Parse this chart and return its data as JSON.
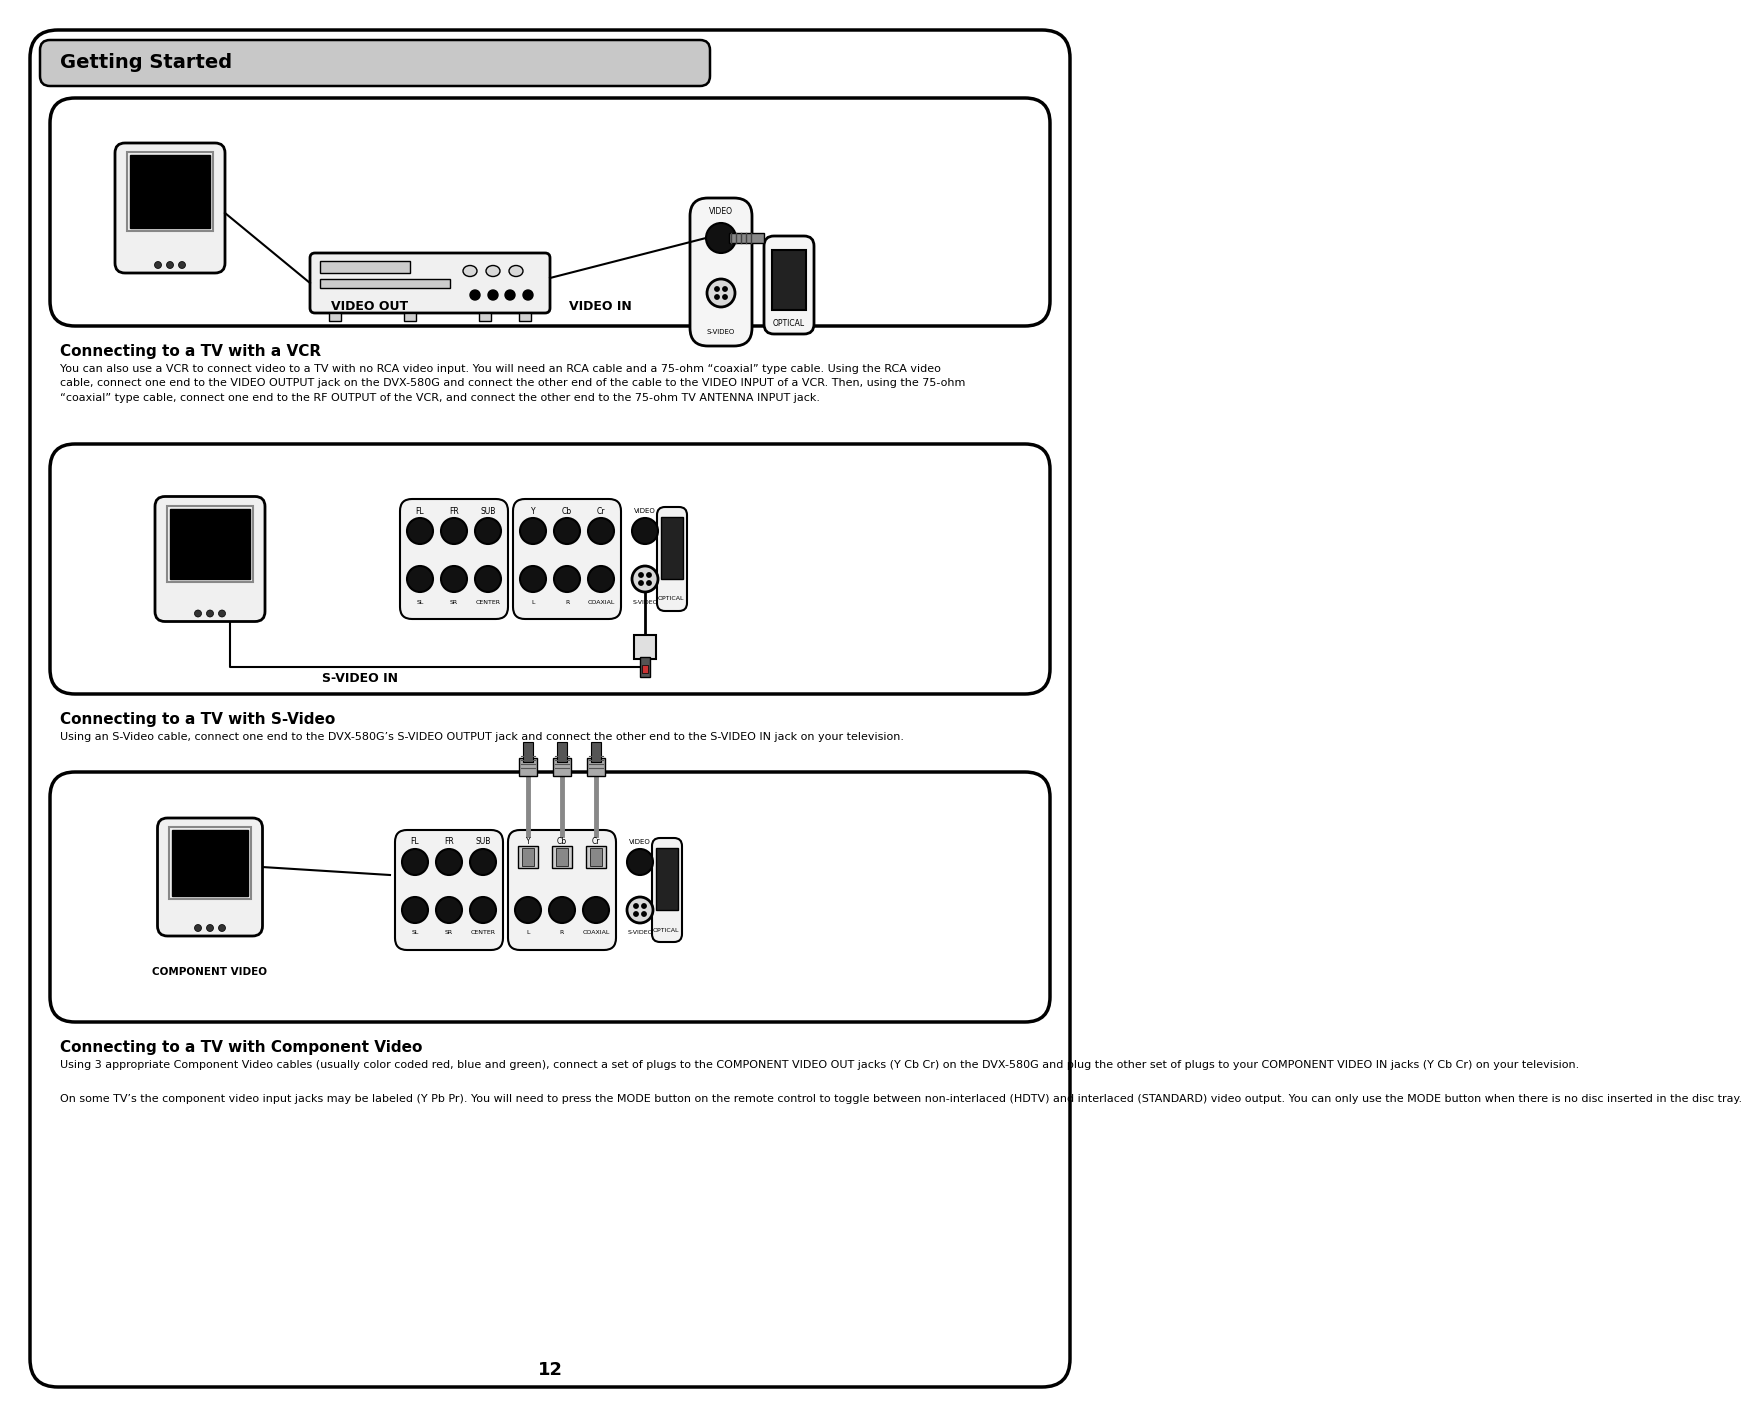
{
  "page_bg": "#ffffff",
  "header_bg": "#c8c8c8",
  "header_text": "Getting Started",
  "header_font_size": 15,
  "section1_title": "Connecting to a TV with a VCR",
  "section1_body": "You can also use a VCR to connect video to a TV with no RCA video input. You will need an RCA cable and a 75-ohm “coaxial” type cable. Using the RCA video\ncable, connect one end to the VIDEO OUTPUT jack on the DVX-580G and connect the other end of the cable to the VIDEO INPUT of a VCR. Then, using the 75-ohm\n“coaxial” type cable, connect one end to the RF OUTPUT of the VCR, and connect the other end to the 75-ohm TV ANTENNA INPUT jack.",
  "section2_title": "Connecting to a TV with S-Video",
  "section2_body": "Using an S-Video cable, connect one end to the DVX-580G’s S-VIDEO OUTPUT jack and connect the other end to the S-VIDEO IN jack on your television.",
  "section3_title": "Connecting to a TV with Component Video",
  "section3_body1": "Using 3 appropriate Component Video cables (usually color coded red, blue and green), connect a set of plugs to the COMPONENT VIDEO OUT jacks (Y Cb Cr) on the DVX-580G and plug the other set of plugs to your COMPONENT VIDEO IN jacks (Y Cb Cr) on your television.",
  "section3_body2": "On some TV’s the component video input jacks may be labeled (Y Pb Pr). You will need to press the MODE button on the remote control to toggle between non-interlaced (HDTV) and interlaced (STANDARD) video output. You can only use the MODE button when there is no disc inserted in the disc tray.",
  "page_number": "12",
  "label_video_out": "VIDEO OUT",
  "label_video_in": "VIDEO IN",
  "label_svideo_in": "S-VIDEO IN",
  "label_component_video": "COMPONENT VIDEO",
  "label_video": "VIDEO",
  "label_svideo": "S-VIDEO",
  "label_optical": "OPTICAL",
  "label_fl": "FL",
  "label_fr": "FR",
  "label_sub": "SUB",
  "label_y": "Y",
  "label_cb": "Cb",
  "label_cr": "Cr",
  "label_sl": "SL",
  "label_sr": "SR",
  "label_center": "CENTER",
  "label_l": "L",
  "label_r": "R",
  "label_coaxial": "COAXIAL"
}
